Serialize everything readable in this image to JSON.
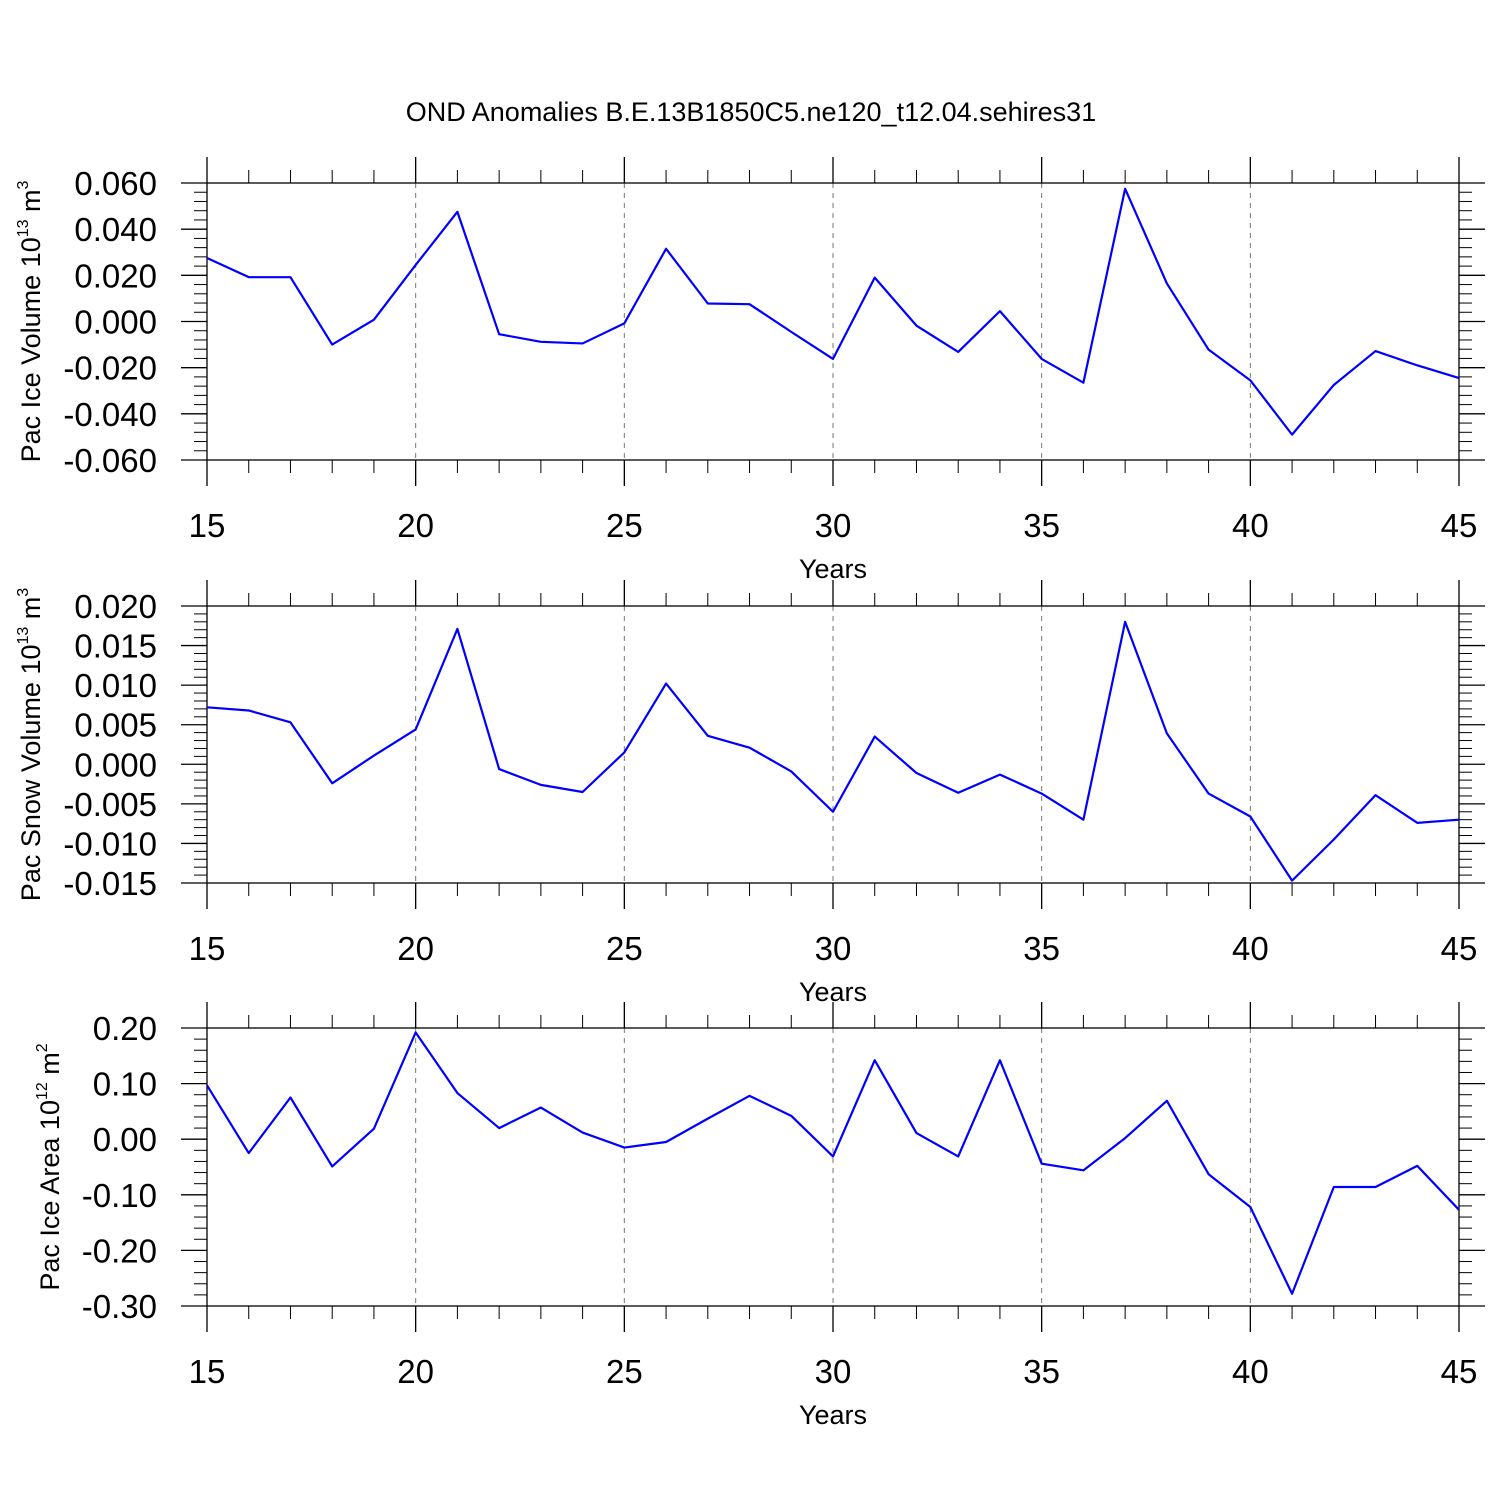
{
  "title": "OND Anomalies B.E.13B1850C5.ne120_t12.04.sehires31",
  "chart_data": [
    {
      "type": "line",
      "title": "OND Anomalies B.E.13B1850C5.ne120_t12.04.sehires31",
      "xlabel": "Years",
      "ylabel_main": "Pac Ice Volume 10",
      "ylabel_exp": "13",
      "ylabel_unit": " m",
      "ylabel_unit_exp": "3",
      "xlim": [
        15,
        45
      ],
      "ylim": [
        -0.06,
        0.06
      ],
      "yticks": [
        -0.06,
        -0.04,
        -0.02,
        0.0,
        0.02,
        0.04,
        0.06
      ],
      "ytick_labels": [
        "-0.060",
        "-0.040",
        "-0.020",
        "0.000",
        "0.020",
        "0.040",
        "0.060"
      ],
      "xticks": [
        15,
        20,
        25,
        30,
        35,
        40,
        45
      ],
      "xtick_labels": [
        "15",
        "20",
        "25",
        "30",
        "35",
        "40",
        "45"
      ],
      "line_color": "#0000ff",
      "x": [
        15,
        16,
        17,
        18,
        19,
        20,
        21,
        22,
        23,
        24,
        25,
        26,
        27,
        28,
        29,
        30,
        31,
        32,
        33,
        34,
        35,
        36,
        37,
        38,
        39,
        40,
        41,
        42,
        43,
        44,
        45
      ],
      "values": [
        0.0275,
        0.0192,
        0.0192,
        -0.01,
        0.0008,
        0.0245,
        0.0475,
        -0.0055,
        -0.0088,
        -0.0095,
        -0.0008,
        0.0315,
        0.0078,
        0.0075,
        -0.0045,
        -0.0162,
        0.019,
        -0.0018,
        -0.0132,
        0.0045,
        -0.0162,
        -0.0265,
        0.0575,
        0.0165,
        -0.0122,
        -0.0255,
        -0.049,
        -0.0275,
        -0.0128,
        -0.019,
        -0.0245
      ]
    },
    {
      "type": "line",
      "xlabel": "Years",
      "ylabel_main": "Pac Snow Volume 10",
      "ylabel_exp": "13",
      "ylabel_unit": " m",
      "ylabel_unit_exp": "3",
      "xlim": [
        15,
        45
      ],
      "ylim": [
        -0.015,
        0.02
      ],
      "yticks": [
        -0.015,
        -0.01,
        -0.005,
        0.0,
        0.005,
        0.01,
        0.015,
        0.02
      ],
      "ytick_labels": [
        "-0.015",
        "-0.010",
        "-0.005",
        "0.000",
        "0.005",
        "0.010",
        "0.015",
        "0.020"
      ],
      "xticks": [
        15,
        20,
        25,
        30,
        35,
        40,
        45
      ],
      "xtick_labels": [
        "15",
        "20",
        "25",
        "30",
        "35",
        "40",
        "45"
      ],
      "line_color": "#0000ff",
      "x": [
        15,
        16,
        17,
        18,
        19,
        20,
        21,
        22,
        23,
        24,
        25,
        26,
        27,
        28,
        29,
        30,
        31,
        32,
        33,
        34,
        35,
        36,
        37,
        38,
        39,
        40,
        41,
        42,
        43,
        44,
        45
      ],
      "values": [
        0.0072,
        0.0068,
        0.0053,
        -0.0024,
        0.0011,
        0.0044,
        0.0171,
        -0.0006,
        -0.0026,
        -0.0035,
        0.0015,
        0.0102,
        0.0036,
        0.0021,
        -0.0009,
        -0.006,
        0.0035,
        -0.0011,
        -0.0036,
        -0.0013,
        -0.0037,
        -0.007,
        0.018,
        0.0039,
        -0.0037,
        -0.0066,
        -0.0147,
        -0.0095,
        -0.0039,
        -0.0074,
        -0.007
      ]
    },
    {
      "type": "line",
      "xlabel": "Years",
      "ylabel_main": "Pac Ice Area 10",
      "ylabel_exp": "12",
      "ylabel_unit": " m",
      "ylabel_unit_exp": "2",
      "xlim": [
        15,
        45
      ],
      "ylim": [
        -0.3,
        0.2
      ],
      "yticks": [
        -0.3,
        -0.2,
        -0.1,
        0.0,
        0.1,
        0.2
      ],
      "ytick_labels": [
        "-0.30",
        "-0.20",
        "-0.10",
        "0.00",
        "0.10",
        "0.20"
      ],
      "xticks": [
        15,
        20,
        25,
        30,
        35,
        40,
        45
      ],
      "xtick_labels": [
        "15",
        "20",
        "25",
        "30",
        "35",
        "40",
        "45"
      ],
      "line_color": "#0000ff",
      "x": [
        15,
        16,
        17,
        18,
        19,
        20,
        21,
        22,
        23,
        24,
        25,
        26,
        27,
        28,
        29,
        30,
        31,
        32,
        33,
        34,
        35,
        36,
        37,
        38,
        39,
        40,
        41,
        42,
        43,
        44,
        45
      ],
      "values": [
        0.097,
        -0.025,
        0.075,
        -0.049,
        0.019,
        0.192,
        0.083,
        0.02,
        0.057,
        0.012,
        -0.015,
        -0.005,
        0.037,
        0.078,
        0.042,
        -0.031,
        0.142,
        0.011,
        -0.031,
        0.142,
        -0.044,
        -0.056,
        0.002,
        0.069,
        -0.063,
        -0.122,
        -0.278,
        -0.086,
        -0.086,
        -0.048,
        -0.127
      ]
    }
  ]
}
